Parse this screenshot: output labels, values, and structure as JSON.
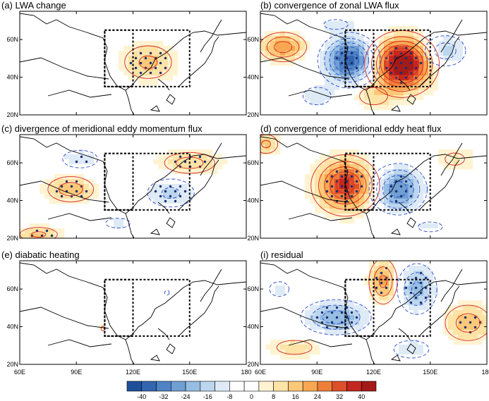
{
  "chart_data": {
    "type": "heatmap",
    "figure": "6-panel map composite of LWA budget terms over East Asia",
    "lon_ticks": [
      "60E",
      "90E",
      "120E",
      "150E",
      "180"
    ],
    "lat_ticks": [
      "20N",
      "40N",
      "60N"
    ],
    "xlim": [
      60,
      180
    ],
    "ylim": [
      20,
      75
    ],
    "box_outer": {
      "lon": [
        105,
        150
      ],
      "lat": [
        35,
        65
      ]
    },
    "box_inner": {
      "lon": [
        105,
        120
      ],
      "lat": [
        35,
        65
      ]
    },
    "panels": [
      {
        "title": "(a) LWA change",
        "features": [
          {
            "lon": 128,
            "lat": 48,
            "amp": 14,
            "slon": 10,
            "slat": 7
          }
        ]
      },
      {
        "title": "(b) convergence of zonal LWA flux",
        "features": [
          {
            "lon": 135,
            "lat": 47,
            "amp": 46,
            "slon": 10,
            "slat": 9
          },
          {
            "lon": 107,
            "lat": 49,
            "amp": -36,
            "slon": 9,
            "slat": 8
          },
          {
            "lon": 72,
            "lat": 56,
            "amp": 22,
            "slon": 8,
            "slat": 5
          },
          {
            "lon": 158,
            "lat": 54,
            "amp": -16,
            "slon": 8,
            "slat": 6
          },
          {
            "lon": 90,
            "lat": 30,
            "amp": -10,
            "slon": 8,
            "slat": 5
          },
          {
            "lon": 120,
            "lat": 30,
            "amp": 10,
            "slon": 8,
            "slat": 5
          },
          {
            "lon": 100,
            "lat": 68,
            "amp": -8,
            "slon": 10,
            "slat": 4
          }
        ]
      },
      {
        "title": "(c) divergence of meridional eddy momentum flux",
        "features": [
          {
            "lon": 87,
            "lat": 46,
            "amp": 16,
            "slon": 9,
            "slat": 5
          },
          {
            "lon": 140,
            "lat": 44,
            "amp": -14,
            "slon": 10,
            "slat": 6
          },
          {
            "lon": 92,
            "lat": 62,
            "amp": -10,
            "slon": 10,
            "slat": 5
          },
          {
            "lon": 150,
            "lat": 60,
            "amp": 12,
            "slon": 12,
            "slat": 5
          },
          {
            "lon": 70,
            "lat": 22,
            "amp": 14,
            "slon": 8,
            "slat": 3
          },
          {
            "lon": 112,
            "lat": 28,
            "amp": -8,
            "slon": 10,
            "slat": 4
          }
        ]
      },
      {
        "title": "(d) convergence of meridional eddy heat flux",
        "features": [
          {
            "lon": 105,
            "lat": 48,
            "amp": 34,
            "slon": 10,
            "slat": 9
          },
          {
            "lon": 133,
            "lat": 46,
            "amp": -28,
            "slon": 9,
            "slat": 8
          },
          {
            "lon": 63,
            "lat": 70,
            "amp": 14,
            "slon": 5,
            "slat": 4
          },
          {
            "lon": 163,
            "lat": 62,
            "amp": 8,
            "slon": 8,
            "slat": 5
          },
          {
            "lon": 150,
            "lat": 26,
            "amp": -8,
            "slon": 10,
            "slat": 4
          }
        ]
      },
      {
        "title": "(e) diabatic heating",
        "features": [
          {
            "lon": 104,
            "lat": 39,
            "amp": 5,
            "slon": 1.5,
            "slat": 2
          },
          {
            "lon": 138,
            "lat": 58,
            "amp": -4,
            "slon": 2,
            "slat": 2
          }
        ]
      },
      {
        "title": "(i) residual",
        "features": [
          {
            "lon": 100,
            "lat": 45,
            "amp": -22,
            "slon": 12,
            "slat": 6
          },
          {
            "lon": 125,
            "lat": 64,
            "amp": 20,
            "slon": 5,
            "slat": 8
          },
          {
            "lon": 143,
            "lat": 60,
            "amp": -20,
            "slon": 7,
            "slat": 9
          },
          {
            "lon": 170,
            "lat": 42,
            "amp": 16,
            "slon": 9,
            "slat": 7
          },
          {
            "lon": 70,
            "lat": 60,
            "amp": -8,
            "slon": 8,
            "slat": 6
          },
          {
            "lon": 78,
            "lat": 29,
            "amp": 10,
            "slon": 10,
            "slat": 4
          },
          {
            "lon": 140,
            "lat": 28,
            "amp": -10,
            "slon": 10,
            "slat": 5
          }
        ]
      }
    ],
    "colorbar": {
      "ticks": [
        "-40",
        "-32",
        "-24",
        "-16",
        "-8",
        "0",
        "8",
        "16",
        "24",
        "32",
        "40"
      ],
      "colors": [
        "#1e4f9a",
        "#3266b0",
        "#4f83c4",
        "#6f9fd3",
        "#96bde2",
        "#bcd6ee",
        "#deebf7",
        "#ffffff",
        "#ffffff",
        "#fff3d2",
        "#fde3a6",
        "#fdc877",
        "#f8a753",
        "#ef7e3a",
        "#dd4f2a",
        "#c3271f",
        "#a31a18"
      ],
      "min": -42,
      "max": 42
    }
  }
}
